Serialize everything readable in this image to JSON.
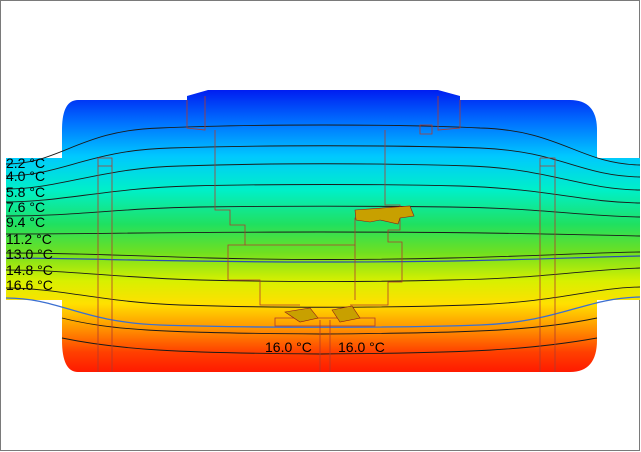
{
  "isotherm_labels": [
    "2.2 °C",
    "4.0 °C",
    "5.8 °C",
    "7.6 °C",
    "9.4 °C",
    "11.2 °C",
    "13.0 °C",
    "14.8 °C",
    "16.6 °C"
  ],
  "marker_labels": [
    "16.0 °C",
    "16.0 °C"
  ],
  "colors": {
    "cold": "#0000ff",
    "cool": "#00bfff",
    "mid": "#00e060",
    "warm": "#ffff00",
    "hot": "#ff0000",
    "outline": "#c0392b",
    "isotherm_16": "#3b6fd1"
  }
}
